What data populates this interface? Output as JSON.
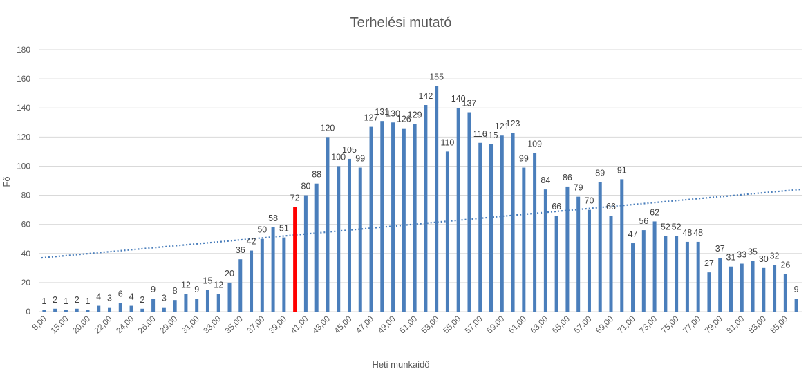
{
  "chart_data": {
    "type": "bar",
    "title": "Terhelési mutató",
    "xlabel": "Heti munkaidő",
    "ylabel": "Fő",
    "ylim": [
      0,
      180
    ],
    "yticks": [
      0,
      20,
      40,
      60,
      80,
      100,
      120,
      140,
      160,
      180
    ],
    "grid": true,
    "legend": "none",
    "bar_color": "#4a7ebb",
    "highlight_color": "#ff0000",
    "highlight_index": 23,
    "trendline": {
      "type": "linear",
      "color": "#4a7ebb",
      "style": "dotted",
      "start": 37,
      "end": 84
    },
    "x_tick_labels": [
      "8,00",
      "15,00",
      "20,00",
      "22,00",
      "24,00",
      "26,00",
      "29,00",
      "31,00",
      "33,00",
      "35,00",
      "37,00",
      "39,00",
      "41,00",
      "43,00",
      "45,00",
      "47,00",
      "49,00",
      "51,00",
      "53,00",
      "55,00",
      "57,00",
      "59,00",
      "61,00",
      "63,00",
      "65,00",
      "67,00",
      "69,00",
      "71,00",
      "73,00",
      "75,00",
      "77,00",
      "79,00",
      "81,00",
      "83,00",
      "85,00"
    ],
    "values": [
      1,
      2,
      1,
      2,
      1,
      4,
      3,
      6,
      4,
      2,
      9,
      3,
      8,
      12,
      9,
      15,
      12,
      20,
      36,
      42,
      50,
      58,
      51,
      72,
      80,
      88,
      120,
      100,
      105,
      99,
      127,
      131,
      130,
      126,
      129,
      142,
      155,
      110,
      140,
      137,
      116,
      115,
      121,
      123,
      99,
      109,
      84,
      66,
      86,
      79,
      70,
      89,
      66,
      91,
      47,
      56,
      62,
      52,
      52,
      48,
      48,
      27,
      37,
      31,
      33,
      35,
      30,
      32,
      26,
      9
    ]
  }
}
